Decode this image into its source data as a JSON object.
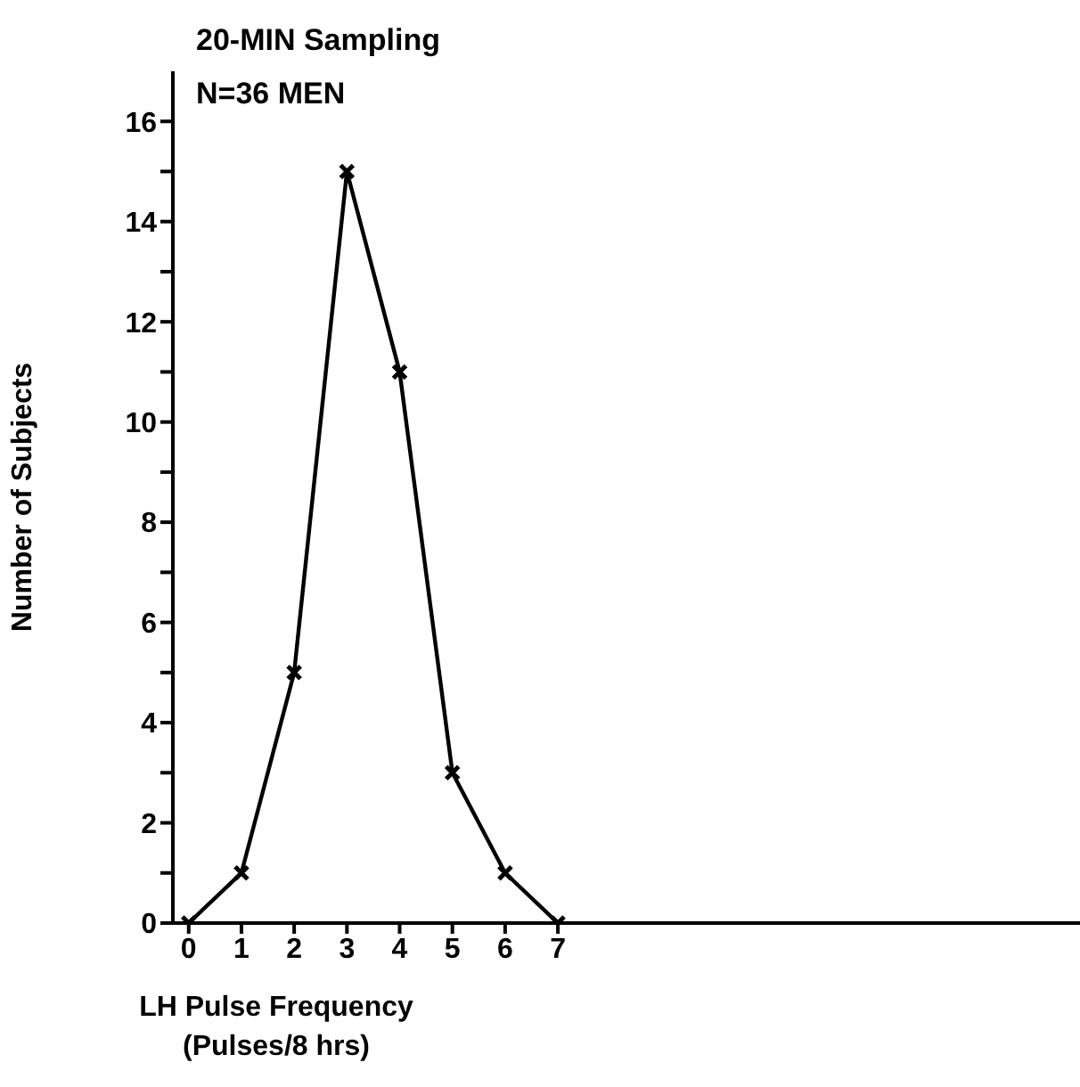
{
  "chart_data": {
    "type": "line",
    "title": "20-MIN Sampling",
    "subtitle": "N=36 MEN",
    "xlabel": "LH Pulse Frequency\n(Pulses/8 hrs)",
    "ylabel": "Number of Subjects",
    "x": [
      0,
      1,
      2,
      3,
      4,
      5,
      6,
      7
    ],
    "series": [
      {
        "color": "#000000",
        "values": [
          0,
          1,
          5,
          15,
          11,
          3,
          1,
          0
        ]
      }
    ],
    "xlim": [
      -0.3,
      16.9
    ],
    "xticks": [
      0,
      1,
      2,
      3,
      4,
      5,
      6,
      7
    ],
    "ylim": [
      0,
      17
    ],
    "yticks": [
      0,
      {
        "value": 1,
        "label": null
      },
      2,
      {
        "value": 3,
        "label": null
      },
      4,
      {
        "value": 5,
        "label": null
      },
      6,
      {
        "value": 7,
        "label": null
      },
      8,
      {
        "value": 9,
        "label": null
      },
      10,
      {
        "value": 11,
        "label": null
      },
      12,
      {
        "value": 13,
        "label": null
      },
      14,
      {
        "value": 15,
        "label": null
      },
      16
    ],
    "marker": "cross",
    "line_style": "solid",
    "grid": false,
    "legend": false
  }
}
